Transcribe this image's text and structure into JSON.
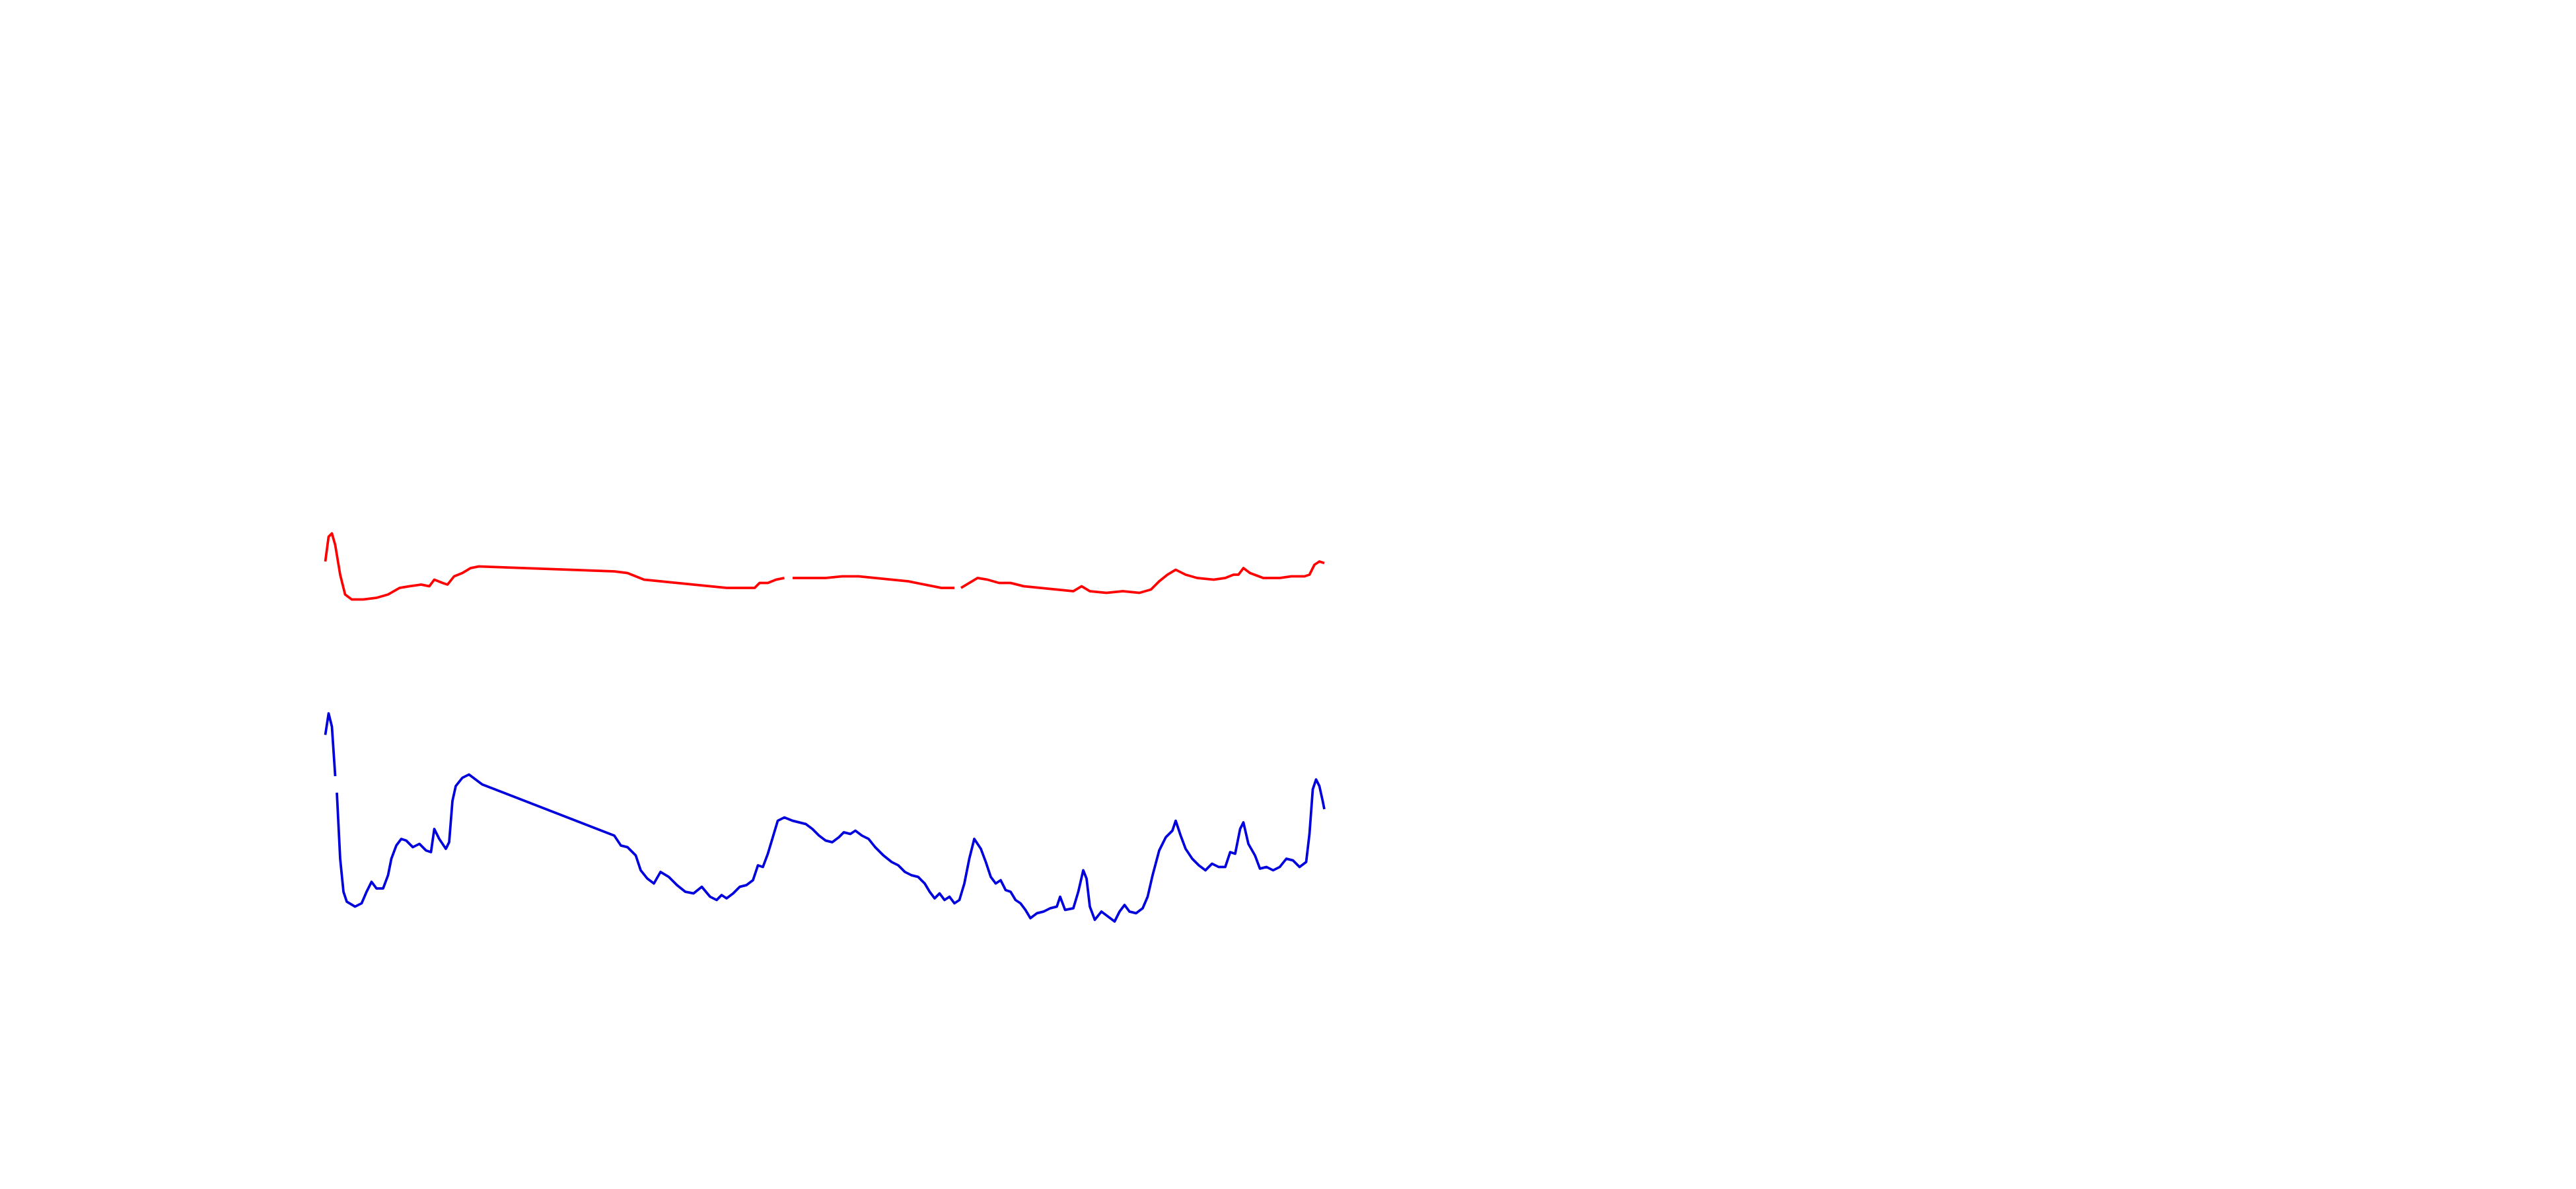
{
  "chart_data": [
    {
      "type": "line",
      "color": "#ff0000",
      "xlim": [
        0,
        1560
      ],
      "ylim": [
        0,
        720
      ],
      "x": [
        197,
        199,
        201,
        203,
        206,
        209,
        213,
        220,
        228,
        235,
        242,
        248,
        255,
        260,
        263,
        268,
        271,
        275,
        280,
        285,
        290,
        372,
        380,
        390,
        400,
        410,
        420,
        430,
        440,
        450,
        457,
        460,
        465,
        470,
        475,
        null,
        480,
        490,
        500,
        510,
        520,
        530,
        540,
        550,
        560,
        570,
        578,
        null,
        582,
        587,
        592,
        598,
        605,
        612,
        620,
        630,
        640,
        650,
        655,
        660,
        670,
        680,
        690,
        697,
        702,
        707,
        712,
        718,
        725,
        735,
        742,
        747,
        750,
        753,
        757,
        765,
        775,
        782,
        790,
        793,
        796,
        799,
        802
      ],
      "values": [
        380,
        395,
        397,
        390,
        372,
        360,
        357,
        357,
        358,
        360,
        364,
        365,
        366,
        365,
        369,
        367,
        366,
        371,
        373,
        376,
        377,
        374,
        373,
        369,
        368,
        367,
        366,
        365,
        364,
        364,
        364,
        367,
        367,
        369,
        370,
        null,
        370,
        370,
        370,
        371,
        371,
        370,
        369,
        368,
        366,
        364,
        364,
        null,
        364,
        367,
        370,
        369,
        367,
        367,
        365,
        364,
        363,
        362,
        365,
        362,
        361,
        362,
        361,
        363,
        368,
        372,
        375,
        372,
        370,
        369,
        370,
        372,
        372,
        376,
        373,
        370,
        370,
        371,
        371,
        372,
        378,
        380,
        379
      ]
    },
    {
      "type": "line",
      "color": "#0000dd",
      "xlim": [
        0,
        1560
      ],
      "ylim": [
        0,
        720
      ],
      "x": [
        197,
        199,
        201,
        203,
        null,
        204,
        206,
        208,
        210,
        215,
        219,
        222,
        225,
        228,
        232,
        235,
        237,
        240,
        243,
        246,
        250,
        254,
        258,
        261,
        263,
        266,
        270,
        272,
        274,
        276,
        280,
        284,
        288,
        292,
        372,
        376,
        380,
        385,
        388,
        392,
        396,
        400,
        405,
        410,
        415,
        420,
        425,
        430,
        434,
        437,
        440,
        444,
        448,
        452,
        456,
        459,
        462,
        465,
        468,
        471,
        475,
        480,
        484,
        488,
        492,
        496,
        500,
        504,
        508,
        511,
        515,
        518,
        522,
        526,
        530,
        535,
        540,
        544,
        548,
        552,
        556,
        560,
        563,
        566,
        569,
        572,
        575,
        578,
        581,
        584,
        587,
        590,
        594,
        597,
        600,
        603,
        606,
        609,
        612,
        615,
        618,
        621,
        624,
        628,
        632,
        636,
        640,
        642,
        645,
        650,
        653,
        656,
        658,
        660,
        663,
        667,
        671,
        675,
        678,
        681,
        684,
        688,
        692,
        695,
        698,
        702,
        706,
        710,
        712,
        715,
        718,
        722,
        726,
        730,
        734,
        738,
        742,
        745,
        748,
        751,
        753,
        756,
        760,
        763,
        767,
        771,
        775,
        779,
        783,
        787,
        791,
        793,
        795,
        797,
        799,
        801,
        802
      ],
      "values": [
        275,
        288,
        280,
        250,
        null,
        240,
        200,
        180,
        174,
        171,
        173,
        180,
        186,
        182,
        182,
        190,
        200,
        208,
        212,
        211,
        207,
        209,
        205,
        204,
        218,
        212,
        206,
        210,
        235,
        244,
        249,
        251,
        248,
        245,
        214,
        208,
        207,
        202,
        193,
        188,
        185,
        192,
        189,
        184,
        180,
        179,
        183,
        177,
        175,
        178,
        176,
        179,
        183,
        184,
        187,
        196,
        195,
        203,
        213,
        223,
        225,
        223,
        222,
        221,
        218,
        214,
        211,
        210,
        213,
        216,
        215,
        217,
        214,
        212,
        207,
        202,
        198,
        196,
        192,
        190,
        189,
        185,
        180,
        176,
        179,
        175,
        177,
        173,
        175,
        185,
        200,
        212,
        206,
        198,
        189,
        185,
        187,
        181,
        180,
        175,
        173,
        169,
        164,
        167,
        168,
        170,
        171,
        177,
        169,
        170,
        180,
        193,
        188,
        171,
        163,
        168,
        165,
        162,
        168,
        172,
        168,
        167,
        170,
        177,
        190,
        205,
        213,
        217,
        223,
        214,
        206,
        200,
        196,
        193,
        197,
        195,
        195,
        204,
        203,
        218,
        222,
        209,
        202,
        194,
        195,
        193,
        195,
        200,
        199,
        195,
        198,
        215,
        242,
        248,
        244,
        235,
        230
      ]
    }
  ]
}
